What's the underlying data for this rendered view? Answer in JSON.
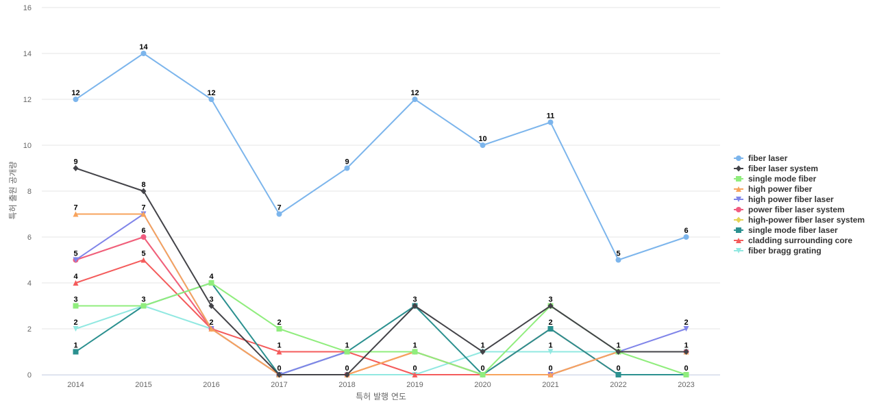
{
  "chart_data": {
    "type": "line",
    "title": "",
    "xlabel": "특허 발행 연도",
    "ylabel": "특허 출원 공개량",
    "ylim": [
      0,
      16
    ],
    "yticks": [
      0,
      2,
      4,
      6,
      8,
      10,
      12,
      14,
      16
    ],
    "grid": true,
    "legend_position": "right",
    "categories": [
      "2014",
      "2015",
      "2016",
      "2017",
      "2018",
      "2019",
      "2020",
      "2021",
      "2022",
      "2023"
    ],
    "series": [
      {
        "name": "fiber laser",
        "color": "#7cb5ec",
        "marker": "circle",
        "values": [
          12,
          14,
          12,
          7,
          9,
          12,
          10,
          11,
          5,
          6
        ]
      },
      {
        "name": "fiber laser system",
        "color": "#434348",
        "marker": "diamond",
        "values": [
          9,
          8,
          3,
          0,
          0,
          3,
          1,
          3,
          1,
          1
        ]
      },
      {
        "name": "single mode fiber",
        "color": "#90ed7d",
        "marker": "square",
        "values": [
          3,
          3,
          4,
          2,
          1,
          1,
          0,
          3,
          1,
          0
        ]
      },
      {
        "name": "high power fiber",
        "color": "#f7a35c",
        "marker": "triangle",
        "values": [
          7,
          7,
          2,
          0,
          0,
          1,
          0,
          0,
          1,
          1
        ]
      },
      {
        "name": "high power fiber laser",
        "color": "#8085e9",
        "marker": "triangle-down",
        "values": [
          5,
          7,
          2,
          0,
          1,
          1,
          0,
          0,
          1,
          2
        ]
      },
      {
        "name": "power fiber laser system",
        "color": "#f15c80",
        "marker": "circle",
        "values": [
          5,
          6,
          2,
          0,
          0,
          1,
          0,
          0,
          1,
          1
        ]
      },
      {
        "name": "high-power fiber laser system",
        "color": "#e4d354",
        "marker": "diamond",
        "values": [
          5,
          6,
          2,
          0,
          0,
          1,
          0,
          0,
          1,
          1
        ]
      },
      {
        "name": "single mode fiber laser",
        "color": "#2b908f",
        "marker": "square",
        "values": [
          1,
          3,
          4,
          0,
          1,
          3,
          0,
          2,
          0,
          0
        ]
      },
      {
        "name": "cladding surrounding core",
        "color": "#f45b5b",
        "marker": "triangle",
        "values": [
          4,
          5,
          2,
          1,
          1,
          0,
          0,
          2,
          0,
          0
        ]
      },
      {
        "name": "fiber bragg grating",
        "color": "#91e8e1",
        "marker": "triangle-down",
        "values": [
          2,
          3,
          2,
          0,
          0,
          0,
          1,
          1,
          1,
          1
        ]
      }
    ],
    "data_labels": [
      {
        "x": "2014",
        "value": 12
      },
      {
        "x": "2015",
        "value": 14
      },
      {
        "x": "2016",
        "value": 12
      },
      {
        "x": "2017",
        "value": 7
      },
      {
        "x": "2018",
        "value": 9
      },
      {
        "x": "2019",
        "value": 12
      },
      {
        "x": "2020",
        "value": 10
      },
      {
        "x": "2021",
        "value": 11
      },
      {
        "x": "2022",
        "value": 5
      },
      {
        "x": "2023",
        "value": 6
      },
      {
        "x": "2014",
        "value": 9
      },
      {
        "x": "2015",
        "value": 8
      },
      {
        "x": "2016",
        "value": 4
      },
      {
        "x": "2014",
        "value": 7
      },
      {
        "x": "2015",
        "value": 7
      },
      {
        "x": "2015",
        "value": 6
      },
      {
        "x": "2014",
        "value": 5
      },
      {
        "x": "2015",
        "value": 5
      },
      {
        "x": "2014",
        "value": 4
      },
      {
        "x": "2014",
        "value": 3
      },
      {
        "x": "2015",
        "value": 3
      },
      {
        "x": "2016",
        "value": 3
      },
      {
        "x": "2014",
        "value": 2
      },
      {
        "x": "2016",
        "value": 2
      },
      {
        "x": "2014",
        "value": 1
      },
      {
        "x": "2017",
        "value": 2
      },
      {
        "x": "2017",
        "value": 1
      },
      {
        "x": "2017",
        "value": 0
      },
      {
        "x": "2018",
        "value": 1
      },
      {
        "x": "2018",
        "value": 0
      },
      {
        "x": "2019",
        "value": 3
      },
      {
        "x": "2019",
        "value": 1
      },
      {
        "x": "2019",
        "value": 0
      },
      {
        "x": "2020",
        "value": 1
      },
      {
        "x": "2020",
        "value": 0
      },
      {
        "x": "2021",
        "value": 3
      },
      {
        "x": "2021",
        "value": 2
      },
      {
        "x": "2021",
        "value": 1
      },
      {
        "x": "2021",
        "value": 0
      },
      {
        "x": "2022",
        "value": 1
      },
      {
        "x": "2022",
        "value": 0
      },
      {
        "x": "2023",
        "value": 2
      },
      {
        "x": "2023",
        "value": 1
      },
      {
        "x": "2023",
        "value": 0
      }
    ]
  }
}
